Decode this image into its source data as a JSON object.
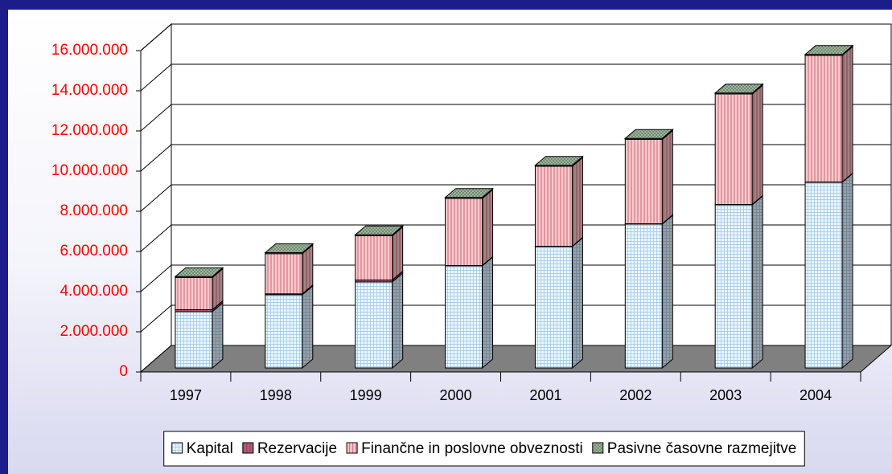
{
  "chart_data": {
    "type": "bar3d_stacked",
    "categories": [
      "1997",
      "1998",
      "1999",
      "2000",
      "2001",
      "2002",
      "2003",
      "2004"
    ],
    "series": [
      {
        "name": "Kapital",
        "color": "#eaf6ff",
        "values": [
          2800000,
          3640000,
          4280000,
          5080000,
          6040000,
          7160000,
          8120000,
          9240000
        ]
      },
      {
        "name": "Rezervacije",
        "color": "#b0607a",
        "values": [
          100000,
          50000,
          100000,
          20000,
          20000,
          20000,
          20000,
          20000
        ]
      },
      {
        "name": "Finančne in poslovne obveznosti",
        "color": "#ffc8c8",
        "values": [
          1600000,
          2000000,
          2200000,
          3340000,
          3980000,
          4200000,
          5500000,
          6300000
        ]
      },
      {
        "name": "Pasivne časovne razmejitve",
        "color": "#a8bca8",
        "values": [
          50000,
          50000,
          50000,
          50000,
          50000,
          50000,
          50000,
          50000
        ]
      }
    ],
    "ylim": [
      0,
      16000000
    ],
    "yticks": [
      0,
      {
        "value": 2000000,
        "label": "2.000.000"
      },
      {
        "value": 4000000,
        "label": "4.000.000"
      },
      {
        "value": 6000000,
        "label": "6.000.000"
      },
      {
        "value": 8000000,
        "label": "8.000.000"
      },
      {
        "value": 10000000,
        "label": "10.000.000"
      },
      {
        "value": 12000000,
        "label": "12.000.000"
      },
      {
        "value": 14000000,
        "label": "14.000.000"
      },
      {
        "value": 16000000,
        "label": "16.000.000"
      }
    ],
    "grid": true,
    "tick_label_color": "#ff0000",
    "legend": "bottom"
  }
}
